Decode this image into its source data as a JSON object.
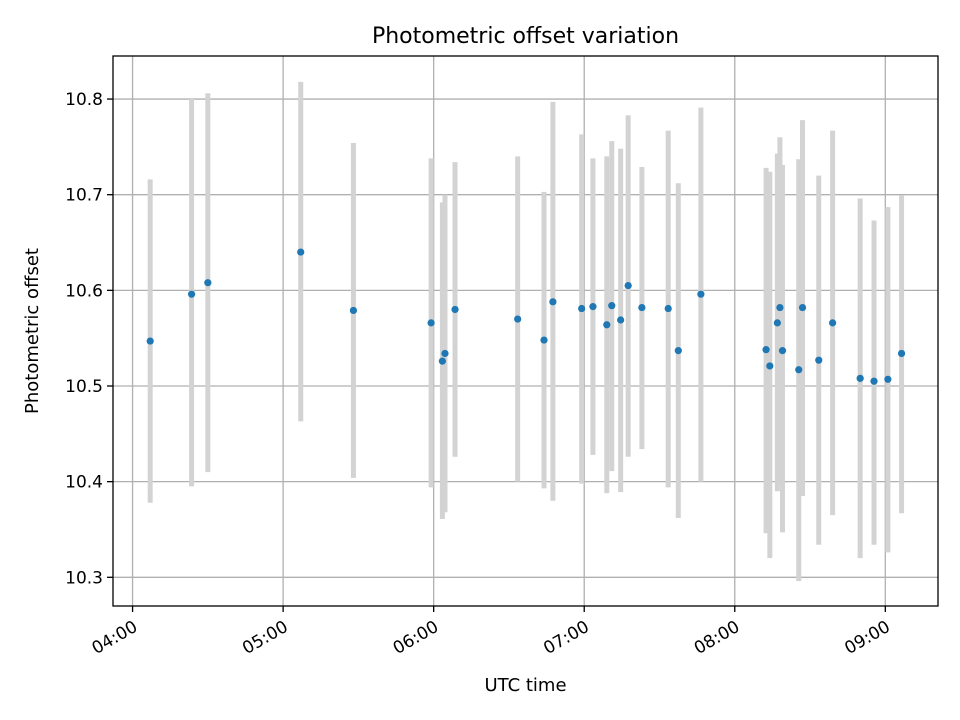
{
  "chart_data": {
    "type": "scatter",
    "title": "Photometric offset variation",
    "xlabel": "UTC time",
    "ylabel": "Photometric offset",
    "grid": true,
    "x_unit": "UTC hour",
    "xlim": [
      3.87,
      9.35
    ],
    "ylim": [
      10.27,
      10.845
    ],
    "x_ticks": [
      {
        "value": 4,
        "label": "04:00"
      },
      {
        "value": 5,
        "label": "05:00"
      },
      {
        "value": 6,
        "label": "06:00"
      },
      {
        "value": 7,
        "label": "07:00"
      },
      {
        "value": 8,
        "label": "08:00"
      },
      {
        "value": 9,
        "label": "09:00"
      }
    ],
    "y_ticks": [
      {
        "value": 10.3,
        "label": "10.3"
      },
      {
        "value": 10.4,
        "label": "10.4"
      },
      {
        "value": 10.5,
        "label": "10.5"
      },
      {
        "value": 10.6,
        "label": "10.6"
      },
      {
        "value": 10.7,
        "label": "10.7"
      },
      {
        "value": 10.8,
        "label": "10.8"
      }
    ],
    "colors": {
      "point": "#1f77b4",
      "errorbar": "#d3d3d3"
    },
    "points": [
      {
        "x": 4.117,
        "y": 10.547,
        "ylow": 10.378,
        "yhigh": 10.716
      },
      {
        "x": 4.392,
        "y": 10.596,
        "ylow": 10.395,
        "yhigh": 10.8
      },
      {
        "x": 4.5,
        "y": 10.608,
        "ylow": 10.41,
        "yhigh": 10.806
      },
      {
        "x": 5.117,
        "y": 10.64,
        "ylow": 10.463,
        "yhigh": 10.818
      },
      {
        "x": 5.467,
        "y": 10.579,
        "ylow": 10.404,
        "yhigh": 10.754
      },
      {
        "x": 5.983,
        "y": 10.566,
        "ylow": 10.394,
        "yhigh": 10.738
      },
      {
        "x": 6.058,
        "y": 10.526,
        "ylow": 10.361,
        "yhigh": 10.692
      },
      {
        "x": 6.075,
        "y": 10.534,
        "ylow": 10.368,
        "yhigh": 10.7
      },
      {
        "x": 6.142,
        "y": 10.58,
        "ylow": 10.426,
        "yhigh": 10.734
      },
      {
        "x": 6.558,
        "y": 10.57,
        "ylow": 10.4,
        "yhigh": 10.74
      },
      {
        "x": 6.733,
        "y": 10.548,
        "ylow": 10.393,
        "yhigh": 10.703
      },
      {
        "x": 6.792,
        "y": 10.588,
        "ylow": 10.38,
        "yhigh": 10.797
      },
      {
        "x": 6.983,
        "y": 10.581,
        "ylow": 10.398,
        "yhigh": 10.763
      },
      {
        "x": 7.058,
        "y": 10.583,
        "ylow": 10.428,
        "yhigh": 10.738
      },
      {
        "x": 7.15,
        "y": 10.564,
        "ylow": 10.388,
        "yhigh": 10.74
      },
      {
        "x": 7.183,
        "y": 10.584,
        "ylow": 10.411,
        "yhigh": 10.756
      },
      {
        "x": 7.242,
        "y": 10.569,
        "ylow": 10.389,
        "yhigh": 10.748
      },
      {
        "x": 7.292,
        "y": 10.605,
        "ylow": 10.426,
        "yhigh": 10.783
      },
      {
        "x": 7.383,
        "y": 10.582,
        "ylow": 10.434,
        "yhigh": 10.729
      },
      {
        "x": 7.558,
        "y": 10.581,
        "ylow": 10.394,
        "yhigh": 10.767
      },
      {
        "x": 7.625,
        "y": 10.537,
        "ylow": 10.362,
        "yhigh": 10.712
      },
      {
        "x": 7.775,
        "y": 10.596,
        "ylow": 10.4,
        "yhigh": 10.791
      },
      {
        "x": 8.208,
        "y": 10.538,
        "ylow": 10.346,
        "yhigh": 10.728
      },
      {
        "x": 8.233,
        "y": 10.521,
        "ylow": 10.32,
        "yhigh": 10.724
      },
      {
        "x": 8.283,
        "y": 10.566,
        "ylow": 10.39,
        "yhigh": 10.743
      },
      {
        "x": 8.3,
        "y": 10.582,
        "ylow": 10.398,
        "yhigh": 10.76
      },
      {
        "x": 8.317,
        "y": 10.537,
        "ylow": 10.347,
        "yhigh": 10.731
      },
      {
        "x": 8.425,
        "y": 10.517,
        "ylow": 10.296,
        "yhigh": 10.737
      },
      {
        "x": 8.45,
        "y": 10.582,
        "ylow": 10.385,
        "yhigh": 10.778
      },
      {
        "x": 8.558,
        "y": 10.527,
        "ylow": 10.334,
        "yhigh": 10.72
      },
      {
        "x": 8.65,
        "y": 10.566,
        "ylow": 10.365,
        "yhigh": 10.767
      },
      {
        "x": 8.833,
        "y": 10.508,
        "ylow": 10.32,
        "yhigh": 10.696
      },
      {
        "x": 8.925,
        "y": 10.505,
        "ylow": 10.334,
        "yhigh": 10.673
      },
      {
        "x": 9.017,
        "y": 10.507,
        "ylow": 10.326,
        "yhigh": 10.687
      },
      {
        "x": 9.108,
        "y": 10.534,
        "ylow": 10.367,
        "yhigh": 10.699
      }
    ]
  }
}
